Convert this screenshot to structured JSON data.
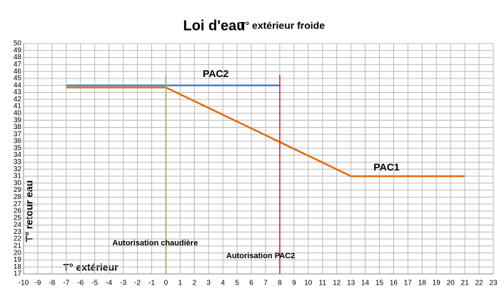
{
  "chart_data": {
    "type": "line",
    "title": "Loi d'eau",
    "subtitle": "T° extérieur froide",
    "x_label": "T° extérieur",
    "y_label": "T° retour eau",
    "xlim": [
      -10,
      23
    ],
    "ylim": [
      17,
      50
    ],
    "xticks": [
      -10,
      -9,
      -8,
      -7,
      -6,
      -5,
      -4,
      -3,
      -2,
      -1,
      0,
      1,
      2,
      3,
      4,
      5,
      6,
      7,
      8,
      9,
      10,
      11,
      12,
      13,
      14,
      15,
      16,
      17,
      18,
      19,
      20,
      21,
      22,
      23
    ],
    "yticks": [
      17,
      18,
      19,
      20,
      21,
      22,
      23,
      24,
      25,
      26,
      27,
      28,
      29,
      30,
      31,
      32,
      33,
      34,
      35,
      36,
      37,
      38,
      39,
      40,
      41,
      42,
      43,
      44,
      45,
      46,
      47,
      48,
      49,
      50
    ],
    "grid": true,
    "series": [
      {
        "name": "PAC2",
        "color": "#4f81bd",
        "x": [
          -7,
          8
        ],
        "values": [
          44,
          44
        ]
      },
      {
        "name": "PAC1",
        "color": "#e36c09",
        "x": [
          -7,
          0,
          13,
          21
        ],
        "values": [
          43.7,
          43.7,
          31,
          31
        ]
      }
    ],
    "markers": [
      {
        "label": "Autorisation chaudière",
        "x": 0,
        "top": 45.5,
        "color": "#7dbb42"
      },
      {
        "label": "Autorisation PAC2",
        "x": 8,
        "top": 45.5,
        "color": "#e0141e"
      }
    ]
  }
}
